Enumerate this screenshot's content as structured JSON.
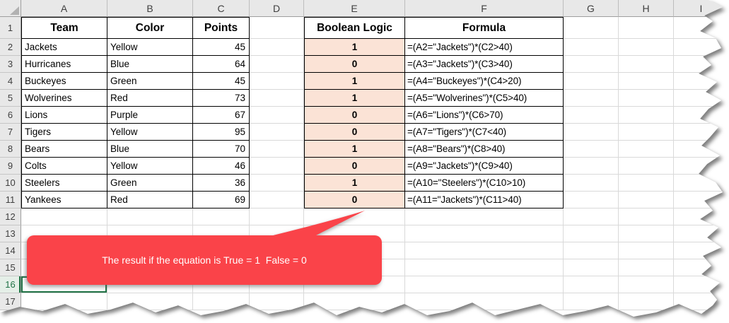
{
  "colors": {
    "callout_red": "#FA4349",
    "boolean_fill": "#FBE3D6",
    "selection_green": "#217346",
    "grid_line": "#D9D9D9",
    "header_bg": "#E8E8E8",
    "table_border": "#000000"
  },
  "sheet": {
    "column_headers": [
      "A",
      "B",
      "C",
      "D",
      "E",
      "F",
      "G",
      "H",
      "I"
    ],
    "row_headers": [
      "1",
      "2",
      "3",
      "4",
      "5",
      "6",
      "7",
      "8",
      "9",
      "10",
      "11",
      "12",
      "13",
      "14",
      "15",
      "16",
      "17"
    ],
    "active_cell": "A16",
    "active_row": "16"
  },
  "table": {
    "column_titles": {
      "team": "Team",
      "color": "Color",
      "points": "Points",
      "boolean": "Boolean Logic",
      "formula": "Formula"
    },
    "rows": [
      {
        "team": "Jackets",
        "color": "Yellow",
        "points": "45",
        "boolean": "1",
        "formula": "=(A2=\"Jackets\")*(C2>40)"
      },
      {
        "team": "Hurricanes",
        "color": "Blue",
        "points": "64",
        "boolean": "0",
        "formula": "=(A3=\"Jackets\")*(C3>40)"
      },
      {
        "team": "Buckeyes",
        "color": "Green",
        "points": "45",
        "boolean": "1",
        "formula": "=(A4=\"Buckeyes\")*(C4>20)"
      },
      {
        "team": "Wolverines",
        "color": "Red",
        "points": "73",
        "boolean": "1",
        "formula": "=(A5=\"Wolverines\")*(C5>40)"
      },
      {
        "team": "Lions",
        "color": "Purple",
        "points": "67",
        "boolean": "0",
        "formula": "=(A6=\"Lions\")*(C6>70)"
      },
      {
        "team": "Tigers",
        "color": "Yellow",
        "points": "95",
        "boolean": "0",
        "formula": "=(A7=\"Tigers\")*(C7<40)"
      },
      {
        "team": "Bears",
        "color": "Blue",
        "points": "70",
        "boolean": "1",
        "formula": "=(A8=\"Bears\")*(C8>40)"
      },
      {
        "team": "Colts",
        "color": "Yellow",
        "points": "46",
        "boolean": "0",
        "formula": "=(A9=\"Jackets\")*(C9>40)"
      },
      {
        "team": "Steelers",
        "color": "Green",
        "points": "36",
        "boolean": "1",
        "formula": "=(A10=\"Steelers\")*(C10>10)"
      },
      {
        "team": "Yankees",
        "color": "Red",
        "points": "69",
        "boolean": "0",
        "formula": "=(A11=\"Jackets\")*(C11>40)"
      }
    ]
  },
  "callout": {
    "text": "The result if the equation is True = 1  False = 0"
  }
}
